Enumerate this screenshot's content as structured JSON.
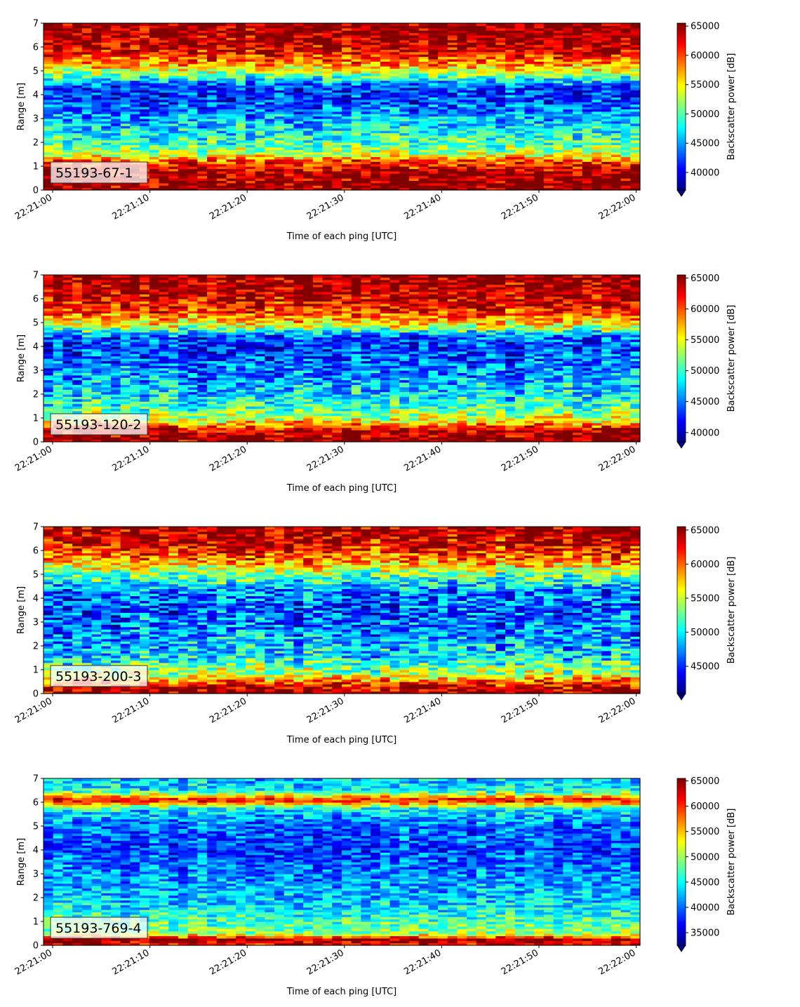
{
  "figure": {
    "xlabel": "Time of each ping [UTC]",
    "ylabel": "Range [m]",
    "colorbar_label": "Backscatter power [dB]",
    "colormap": "jet",
    "xticks": [
      "22:21:00",
      "22:21:10",
      "22:21:20",
      "22:21:30",
      "22:21:40",
      "22:21:50",
      "22:22:00"
    ],
    "yticks": [
      0,
      1,
      2,
      3,
      4,
      5,
      6,
      7
    ]
  },
  "chart_data": [
    {
      "type": "heatmap",
      "panel_label": "55193-67-1",
      "xlabel": "Time of each ping [UTC]",
      "ylabel": "Range [m]",
      "x_range": [
        "22:21:00",
        "22:22:00"
      ],
      "ylim": [
        0,
        7
      ],
      "colorbar": {
        "label": "Backscatter power [dB]",
        "ticks": [
          40000,
          45000,
          50000,
          55000,
          60000,
          65000
        ],
        "range": [
          37000,
          65500
        ]
      },
      "profile": [
        {
          "range_m": 0.1,
          "power": 65000
        },
        {
          "range_m": 0.7,
          "power": 64500
        },
        {
          "range_m": 1.2,
          "power": 60000
        },
        {
          "range_m": 1.6,
          "power": 52000
        },
        {
          "range_m": 2.2,
          "power": 48500
        },
        {
          "range_m": 3.0,
          "power": 45500
        },
        {
          "range_m": 3.8,
          "power": 42000
        },
        {
          "range_m": 4.3,
          "power": 41500
        },
        {
          "range_m": 4.8,
          "power": 50000
        },
        {
          "range_m": 5.3,
          "power": 58000
        },
        {
          "range_m": 6.0,
          "power": 63500
        },
        {
          "range_m": 6.9,
          "power": 65000
        }
      ]
    },
    {
      "type": "heatmap",
      "panel_label": "55193-120-2",
      "xlabel": "Time of each ping [UTC]",
      "ylabel": "Range [m]",
      "x_range": [
        "22:21:00",
        "22:22:00"
      ],
      "ylim": [
        0,
        7
      ],
      "colorbar": {
        "label": "Backscatter power [dB]",
        "ticks": [
          40000,
          45000,
          50000,
          55000,
          60000,
          65000
        ],
        "range": [
          38500,
          65500
        ]
      },
      "profile": [
        {
          "range_m": 0.1,
          "power": 65000
        },
        {
          "range_m": 0.5,
          "power": 64000
        },
        {
          "range_m": 0.9,
          "power": 55000
        },
        {
          "range_m": 1.5,
          "power": 50000
        },
        {
          "range_m": 2.3,
          "power": 47000
        },
        {
          "range_m": 3.2,
          "power": 45000
        },
        {
          "range_m": 4.0,
          "power": 43000
        },
        {
          "range_m": 4.4,
          "power": 44000
        },
        {
          "range_m": 4.9,
          "power": 55000
        },
        {
          "range_m": 5.5,
          "power": 61000
        },
        {
          "range_m": 6.2,
          "power": 64000
        },
        {
          "range_m": 6.9,
          "power": 65000
        }
      ]
    },
    {
      "type": "heatmap",
      "panel_label": "55193-200-3",
      "xlabel": "Time of each ping [UTC]",
      "ylabel": "Range [m]",
      "x_range": [
        "22:21:00",
        "22:22:00"
      ],
      "ylim": [
        0,
        7
      ],
      "colorbar": {
        "label": "Backscatter power [dB]",
        "ticks": [
          45000,
          50000,
          55000,
          60000,
          65000
        ],
        "range": [
          41000,
          65500
        ]
      },
      "profile": [
        {
          "range_m": 0.1,
          "power": 65000
        },
        {
          "range_m": 0.4,
          "power": 62000
        },
        {
          "range_m": 0.8,
          "power": 55000
        },
        {
          "range_m": 1.5,
          "power": 50000
        },
        {
          "range_m": 2.5,
          "power": 47500
        },
        {
          "range_m": 3.5,
          "power": 46000
        },
        {
          "range_m": 4.3,
          "power": 47000
        },
        {
          "range_m": 5.0,
          "power": 53000
        },
        {
          "range_m": 5.6,
          "power": 59000
        },
        {
          "range_m": 6.2,
          "power": 63000
        },
        {
          "range_m": 6.9,
          "power": 64500
        }
      ]
    },
    {
      "type": "heatmap",
      "panel_label": "55193-769-4",
      "xlabel": "Time of each ping [UTC]",
      "ylabel": "Range [m]",
      "x_range": [
        "22:21:00",
        "22:22:00"
      ],
      "ylim": [
        0,
        7
      ],
      "colorbar": {
        "label": "Backscatter power [dB]",
        "ticks": [
          35000,
          40000,
          45000,
          50000,
          55000,
          60000,
          65000
        ],
        "range": [
          32500,
          65500
        ]
      },
      "profile": [
        {
          "range_m": 0.1,
          "power": 62000
        },
        {
          "range_m": 0.25,
          "power": 65000
        },
        {
          "range_m": 0.5,
          "power": 50000
        },
        {
          "range_m": 1.0,
          "power": 47000
        },
        {
          "range_m": 2.0,
          "power": 43000
        },
        {
          "range_m": 3.0,
          "power": 41000
        },
        {
          "range_m": 4.0,
          "power": 39000
        },
        {
          "range_m": 5.0,
          "power": 40000
        },
        {
          "range_m": 5.7,
          "power": 44000
        },
        {
          "range_m": 6.1,
          "power": 62000
        },
        {
          "range_m": 6.5,
          "power": 45000
        },
        {
          "range_m": 6.9,
          "power": 43000
        }
      ]
    }
  ]
}
